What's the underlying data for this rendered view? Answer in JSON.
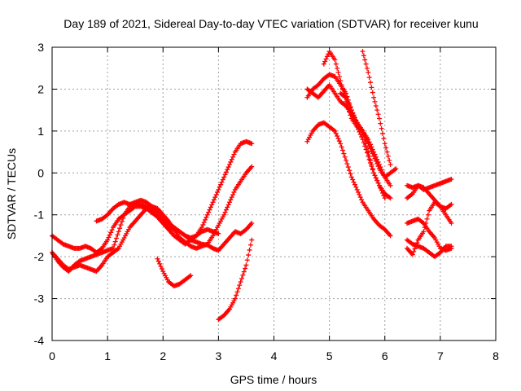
{
  "chart_data": {
    "type": "scatter",
    "title": "Day 189 of 2021, Sidereal Day-to-day VTEC variation (SDTVAR) for receiver kunu",
    "xlabel": "GPS time / hours",
    "ylabel": "SDTVAR / TECUs",
    "xlim": [
      0,
      8
    ],
    "ylim": [
      -4,
      3
    ],
    "xticks": [
      "0",
      "1",
      "2",
      "3",
      "4",
      "5",
      "6",
      "7",
      "8"
    ],
    "yticks": [
      "-4",
      "-3",
      "-2",
      "-1",
      "0",
      "1",
      "2",
      "3"
    ],
    "grid": true,
    "marker": "+",
    "color": "#ff0000",
    "series": [
      {
        "x": [
          0.0,
          0.1,
          0.2,
          0.3,
          0.4,
          0.5,
          0.6,
          0.7,
          0.8,
          0.9,
          1.0,
          1.1,
          1.2,
          1.3,
          1.4,
          1.5,
          1.6,
          1.7,
          1.8,
          1.9,
          2.0,
          2.1,
          2.2,
          2.3,
          2.4,
          2.5,
          2.6,
          2.7,
          2.8,
          2.9,
          3.0,
          3.1,
          3.2,
          3.3,
          3.4,
          3.5,
          3.6
        ],
        "y": [
          -1.5,
          -1.6,
          -1.7,
          -1.75,
          -1.8,
          -1.8,
          -1.75,
          -1.8,
          -1.9,
          -1.8,
          -1.6,
          -1.3,
          -1.1,
          -1.0,
          -0.9,
          -0.8,
          -0.8,
          -0.85,
          -0.95,
          -1.05,
          -1.2,
          -1.35,
          -1.5,
          -1.6,
          -1.7,
          -1.6,
          -1.5,
          -1.3,
          -1.0,
          -0.7,
          -0.4,
          -0.1,
          0.2,
          0.5,
          0.7,
          0.75,
          0.7
        ]
      },
      {
        "x": [
          0.0,
          0.1,
          0.2,
          0.3,
          0.4,
          0.5,
          0.6,
          0.7,
          0.8,
          0.9,
          1.0,
          1.1,
          1.2,
          1.3,
          1.4,
          1.5,
          1.6,
          1.7,
          1.8,
          1.9,
          2.0,
          2.1,
          2.2,
          2.3,
          2.4,
          2.5,
          2.6,
          2.7,
          2.8,
          2.9,
          3.0,
          3.1,
          3.2,
          3.3,
          3.4,
          3.5,
          3.6
        ],
        "y": [
          -1.9,
          -2.05,
          -2.2,
          -2.3,
          -2.25,
          -2.2,
          -2.25,
          -2.3,
          -2.35,
          -2.2,
          -2.0,
          -1.9,
          -1.8,
          -1.55,
          -1.3,
          -1.15,
          -1.0,
          -0.85,
          -0.8,
          -0.85,
          -1.0,
          -1.15,
          -1.35,
          -1.55,
          -1.65,
          -1.75,
          -1.8,
          -1.75,
          -1.7,
          -1.5,
          -1.25,
          -1.0,
          -0.7,
          -0.4,
          -0.2,
          0.0,
          0.15
        ]
      },
      {
        "x": [
          0.0,
          0.1,
          0.2,
          0.3,
          0.4,
          0.5,
          0.6,
          0.7,
          0.8,
          0.9,
          1.0,
          1.1,
          1.2,
          1.3,
          1.4,
          1.5,
          1.6,
          1.7,
          1.8,
          1.9,
          2.0,
          2.1,
          2.2,
          2.3,
          2.4,
          2.5,
          2.6,
          2.7,
          2.8,
          2.9,
          3.0,
          3.1,
          3.2,
          3.3,
          3.4,
          3.5,
          3.6
        ],
        "y": [
          -1.9,
          -2.1,
          -2.25,
          -2.35,
          -2.2,
          -2.1,
          -2.05,
          -2.0,
          -1.95,
          -1.9,
          -1.85,
          -1.8,
          -1.4,
          -1.0,
          -0.8,
          -0.72,
          -0.75,
          -0.8,
          -0.9,
          -1.05,
          -1.2,
          -1.3,
          -1.35,
          -1.4,
          -1.5,
          -1.6,
          -1.65,
          -1.7,
          -1.72,
          -1.8,
          -1.85,
          -1.7,
          -1.55,
          -1.4,
          -1.45,
          -1.35,
          -1.2
        ]
      },
      {
        "x": [
          0.8,
          0.9,
          1.0,
          1.1,
          1.2,
          1.3,
          1.4,
          1.5,
          1.6,
          1.7,
          1.8,
          1.9,
          2.0,
          2.1,
          2.2,
          2.3,
          2.4,
          2.5,
          2.6,
          2.7,
          2.8,
          2.9,
          3.0
        ],
        "y": [
          -1.15,
          -1.1,
          -1.0,
          -0.85,
          -0.75,
          -0.7,
          -0.75,
          -0.7,
          -0.65,
          -0.7,
          -0.8,
          -0.95,
          -1.1,
          -1.2,
          -1.3,
          -1.4,
          -1.5,
          -1.55,
          -1.5,
          -1.4,
          -1.35,
          -1.4,
          -1.45
        ]
      },
      {
        "x": [
          1.9,
          2.0,
          2.1,
          2.2,
          2.3,
          2.4,
          2.5
        ],
        "y": [
          -2.05,
          -2.35,
          -2.6,
          -2.7,
          -2.65,
          -2.55,
          -2.45
        ]
      },
      {
        "x": [
          3.0,
          3.1,
          3.2,
          3.3,
          3.4,
          3.5,
          3.6
        ],
        "y": [
          -3.5,
          -3.4,
          -3.25,
          -3.0,
          -2.6,
          -2.2,
          -1.6
        ]
      },
      {
        "x": [
          4.6,
          4.7,
          4.8,
          4.9,
          5.0,
          5.1,
          5.2,
          5.3,
          5.4,
          5.5,
          5.6,
          5.7,
          5.8,
          5.9,
          6.0,
          6.1,
          6.2
        ],
        "y": [
          1.8,
          2.0,
          2.1,
          2.25,
          2.35,
          2.3,
          2.1,
          1.9,
          1.5,
          1.2,
          1.0,
          0.7,
          0.4,
          0.1,
          -0.1,
          0.0,
          0.1
        ]
      },
      {
        "x": [
          4.6,
          4.7,
          4.8,
          4.9,
          5.0,
          5.1,
          5.2,
          5.3,
          5.4,
          5.5,
          5.6,
          5.7,
          5.8,
          5.9,
          6.0,
          6.1
        ],
        "y": [
          2.0,
          1.9,
          1.8,
          1.95,
          2.1,
          1.9,
          1.7,
          1.6,
          1.4,
          1.2,
          1.0,
          0.8,
          0.5,
          0.2,
          -0.1,
          -0.3
        ]
      },
      {
        "x": [
          4.6,
          4.7,
          4.8,
          4.9,
          5.0,
          5.1,
          5.2,
          5.3,
          5.4,
          5.5,
          5.6,
          5.7,
          5.8,
          5.9,
          6.0,
          6.1
        ],
        "y": [
          0.75,
          1.0,
          1.15,
          1.2,
          1.1,
          1.0,
          0.7,
          0.3,
          -0.1,
          -0.4,
          -0.7,
          -0.9,
          -1.1,
          -1.25,
          -1.35,
          -1.5
        ]
      },
      {
        "x": [
          4.9,
          5.0,
          5.1,
          5.2,
          5.3,
          5.4,
          5.5,
          5.6,
          5.7,
          5.8,
          5.9,
          6.0
        ],
        "y": [
          2.6,
          2.9,
          2.7,
          2.2,
          1.7,
          1.3,
          1.1,
          1.0,
          0.5,
          0.0,
          -0.3,
          -0.6
        ]
      },
      {
        "x": [
          5.6,
          5.7,
          5.8,
          5.9,
          6.0,
          6.1
        ],
        "y": [
          2.9,
          2.4,
          1.8,
          1.3,
          0.7,
          0.2
        ]
      },
      {
        "x": [
          5.2,
          5.3,
          5.4,
          5.5,
          5.6,
          5.7,
          5.8,
          5.9,
          6.0,
          6.1
        ],
        "y": [
          1.9,
          1.8,
          1.5,
          1.1,
          0.8,
          0.4,
          0.0,
          -0.3,
          -0.5,
          -0.6
        ]
      },
      {
        "x": [
          6.4,
          6.5,
          6.6,
          6.7,
          6.8,
          6.9,
          7.0,
          7.1,
          7.2
        ],
        "y": [
          -0.3,
          -0.35,
          -0.3,
          -0.4,
          -0.35,
          -0.3,
          -0.25,
          -0.2,
          -0.15
        ]
      },
      {
        "x": [
          6.4,
          6.5,
          6.6,
          6.7,
          6.8,
          6.9,
          7.0,
          7.1,
          7.2
        ],
        "y": [
          -0.6,
          -0.5,
          -0.3,
          -0.35,
          -0.5,
          -0.65,
          -0.8,
          -0.85,
          -0.75
        ]
      },
      {
        "x": [
          6.4,
          6.5,
          6.6,
          6.7,
          6.8,
          6.9,
          7.0,
          7.1,
          7.2
        ],
        "y": [
          -1.2,
          -1.15,
          -1.1,
          -1.2,
          -1.4,
          -1.55,
          -1.8,
          -1.85,
          -1.8
        ]
      },
      {
        "x": [
          6.4,
          6.5,
          6.6,
          6.7,
          6.8,
          6.9,
          7.0,
          7.1,
          7.2
        ],
        "y": [
          -1.6,
          -1.7,
          -1.75,
          -1.8,
          -1.9,
          -2.0,
          -1.9,
          -1.75,
          -1.75
        ]
      },
      {
        "x": [
          6.4,
          6.5,
          6.6,
          6.7,
          6.8,
          6.9,
          7.0,
          7.1,
          7.2
        ],
        "y": [
          -1.8,
          -1.95,
          -1.6,
          -1.4,
          -0.9,
          -0.7,
          -0.8,
          -1.0,
          -1.2
        ]
      }
    ]
  }
}
